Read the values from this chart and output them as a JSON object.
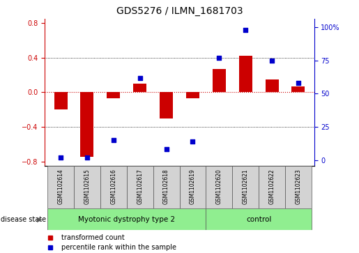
{
  "title": "GDS5276 / ILMN_1681703",
  "samples": [
    "GSM1102614",
    "GSM1102615",
    "GSM1102616",
    "GSM1102617",
    "GSM1102618",
    "GSM1102619",
    "GSM1102620",
    "GSM1102621",
    "GSM1102622",
    "GSM1102623"
  ],
  "red_values": [
    -0.2,
    -0.75,
    -0.07,
    0.1,
    -0.3,
    -0.07,
    0.27,
    0.42,
    0.15,
    0.07
  ],
  "blue_values": [
    2,
    2,
    15,
    62,
    8,
    14,
    77,
    98,
    75,
    58
  ],
  "red_color": "#cc0000",
  "blue_color": "#0000cc",
  "ylim_left": [
    -0.85,
    0.85
  ],
  "ylim_right": [
    -4.25,
    106.25
  ],
  "yticks_left": [
    -0.8,
    -0.4,
    0.0,
    0.4,
    0.8
  ],
  "yticks_right": [
    0,
    25,
    50,
    75,
    100
  ],
  "ytick_labels_right": [
    "0",
    "25",
    "50",
    "75",
    "100%"
  ],
  "groups": [
    {
      "label": "Myotonic dystrophy type 2",
      "start": 0,
      "end": 6,
      "color": "#90ee90"
    },
    {
      "label": "control",
      "start": 6,
      "end": 10,
      "color": "#90ee90"
    }
  ],
  "disease_state_label": "disease state",
  "legend": [
    {
      "label": "transformed count",
      "color": "#cc0000"
    },
    {
      "label": "percentile rank within the sample",
      "color": "#0000cc"
    }
  ],
  "bar_width": 0.5,
  "background_color": "#ffffff"
}
